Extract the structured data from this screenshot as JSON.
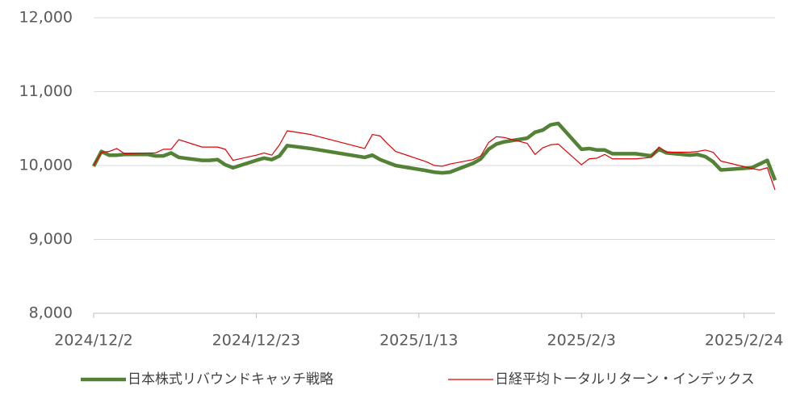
{
  "chart_data": {
    "type": "line",
    "x": [
      "2024/12/2",
      "2024/12/3",
      "2024/12/4",
      "2024/12/5",
      "2024/12/6",
      "2024/12/9",
      "2024/12/10",
      "2024/12/11",
      "2024/12/12",
      "2024/12/13",
      "2024/12/16",
      "2024/12/17",
      "2024/12/18",
      "2024/12/19",
      "2024/12/20",
      "2024/12/23",
      "2024/12/24",
      "2024/12/25",
      "2024/12/26",
      "2024/12/27",
      "2024/12/30",
      "2025/1/6",
      "2025/1/7",
      "2025/1/8",
      "2025/1/9",
      "2025/1/10",
      "2025/1/14",
      "2025/1/15",
      "2025/1/16",
      "2025/1/17",
      "2025/1/20",
      "2025/1/21",
      "2025/1/22",
      "2025/1/23",
      "2025/1/24",
      "2025/1/27",
      "2025/1/28",
      "2025/1/29",
      "2025/1/30",
      "2025/1/31",
      "2025/2/3",
      "2025/2/4",
      "2025/2/5",
      "2025/2/6",
      "2025/2/7",
      "2025/2/10",
      "2025/2/12",
      "2025/2/13",
      "2025/2/14",
      "2025/2/17",
      "2025/2/18",
      "2025/2/19",
      "2025/2/20",
      "2025/2/21",
      "2025/2/25",
      "2025/2/26",
      "2025/2/27",
      "2025/2/28"
    ],
    "series": [
      {
        "name": "日本株式リバウンドキャッチ戦略",
        "color": "#538135",
        "width": 4.5,
        "values": [
          9990,
          10190,
          10140,
          10140,
          10150,
          10150,
          10130,
          10130,
          10170,
          10110,
          10070,
          10070,
          10080,
          10010,
          9970,
          10070,
          10100,
          10080,
          10130,
          10270,
          10230,
          10110,
          10140,
          10080,
          10040,
          10000,
          9930,
          9910,
          9900,
          9910,
          10030,
          10090,
          10220,
          10290,
          10320,
          10370,
          10450,
          10480,
          10550,
          10570,
          10220,
          10230,
          10210,
          10210,
          10160,
          10160,
          10130,
          10220,
          10170,
          10140,
          10150,
          10120,
          10050,
          9940,
          9970,
          10020,
          10070,
          9800
        ]
      },
      {
        "name": "日経平均トータルリターン・インデックス",
        "color": "#e00000",
        "width": 1.2,
        "values": [
          10000,
          10180,
          10190,
          10230,
          10160,
          10170,
          10170,
          10220,
          10220,
          10350,
          10250,
          10250,
          10250,
          10220,
          10070,
          10140,
          10170,
          10140,
          10280,
          10470,
          10420,
          10230,
          10420,
          10400,
          10290,
          10190,
          10050,
          10000,
          9990,
          10020,
          10080,
          10130,
          10310,
          10390,
          10380,
          10300,
          10150,
          10240,
          10280,
          10290,
          10010,
          10090,
          10100,
          10150,
          10090,
          10090,
          10110,
          10250,
          10180,
          10180,
          10190,
          10210,
          10180,
          10060,
          9960,
          9940,
          9970,
          9670
        ]
      }
    ],
    "xlim": [
      "2024/12/2",
      "2025/2/28"
    ],
    "xticks": [
      "2024/12/2",
      "2024/12/23",
      "2025/1/13",
      "2025/2/3",
      "2025/2/24"
    ],
    "ylim": [
      8000,
      12000
    ],
    "yticks": [
      {
        "value": 8000,
        "label": "8,000"
      },
      {
        "value": 9000,
        "label": "9,000"
      },
      {
        "value": 10000,
        "label": "10,000"
      },
      {
        "value": 11000,
        "label": "11,000"
      },
      {
        "value": 12000,
        "label": "12,000"
      }
    ],
    "grid": true,
    "legend": "bottom"
  }
}
